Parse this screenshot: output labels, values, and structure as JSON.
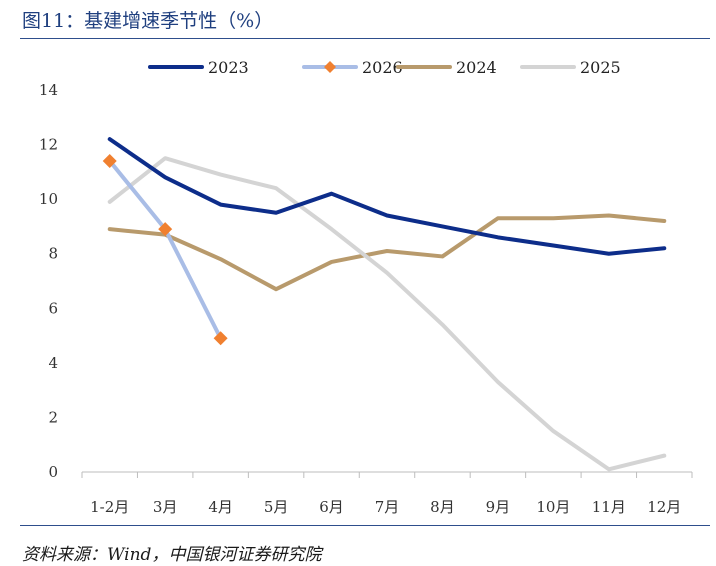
{
  "header": {
    "title": "图11：基建增速季节性（%）"
  },
  "footer": {
    "source": "资料来源：Wind，中国银河证券研究院"
  },
  "chart_data": {
    "type": "line",
    "title": "",
    "xlabel": "",
    "ylabel": "",
    "ylim": [
      0,
      14
    ],
    "yticks": [
      "0",
      "2",
      "4",
      "6",
      "8",
      "10",
      "12",
      "14"
    ],
    "categories": [
      "1-2月",
      "3月",
      "4月",
      "5月",
      "6月",
      "7月",
      "8月",
      "9月",
      "10月",
      "11月",
      "12月"
    ],
    "legend_position": "top",
    "grid": false,
    "series": [
      {
        "name": "2023",
        "color": "#0d2d8a",
        "marker": "none",
        "values": [
          12.2,
          10.8,
          9.8,
          9.5,
          10.2,
          9.4,
          9.0,
          8.6,
          8.3,
          8.0,
          8.2
        ]
      },
      {
        "name": "2026",
        "color": "#a9bde6",
        "marker": "diamond",
        "marker_color": "#f08030",
        "values": [
          11.4,
          8.9,
          4.9,
          null,
          null,
          null,
          null,
          null,
          null,
          null,
          null
        ]
      },
      {
        "name": "2024",
        "color": "#b89a6c",
        "marker": "none",
        "values": [
          8.9,
          8.7,
          7.8,
          6.7,
          7.7,
          8.1,
          7.9,
          9.3,
          9.3,
          9.4,
          9.2
        ]
      },
      {
        "name": "2025",
        "color": "#d4d4d4",
        "marker": "none",
        "values": [
          9.9,
          11.5,
          10.9,
          10.4,
          8.9,
          7.3,
          5.4,
          3.3,
          1.5,
          0.1,
          0.6
        ]
      }
    ]
  }
}
